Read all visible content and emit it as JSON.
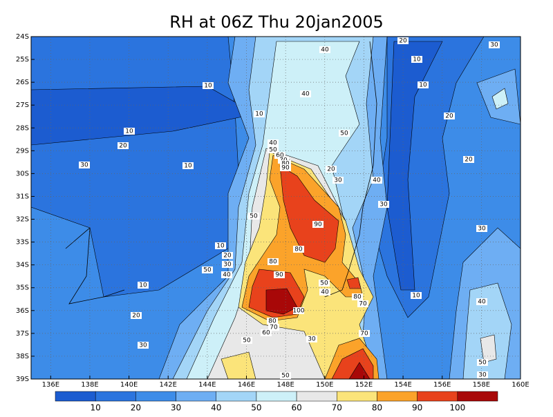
{
  "title": "RH at 06Z Thu 20jan2005",
  "lon_ticks": [
    {
      "value": 136,
      "label": "136E"
    },
    {
      "value": 138,
      "label": "138E"
    },
    {
      "value": 140,
      "label": "140E"
    },
    {
      "value": 142,
      "label": "142E"
    },
    {
      "value": 144,
      "label": "144E"
    },
    {
      "value": 146,
      "label": "146E"
    },
    {
      "value": 148,
      "label": "148E"
    },
    {
      "value": 150,
      "label": "150E"
    },
    {
      "value": 152,
      "label": "152E"
    },
    {
      "value": 154,
      "label": "154E"
    },
    {
      "value": 156,
      "label": "156E"
    },
    {
      "value": 158,
      "label": "158E"
    },
    {
      "value": 160,
      "label": "160E"
    }
  ],
  "lat_ticks": [
    {
      "value": -24,
      "label": "24S"
    },
    {
      "value": -25,
      "label": "25S"
    },
    {
      "value": -26,
      "label": "26S"
    },
    {
      "value": -27,
      "label": "27S"
    },
    {
      "value": -28,
      "label": "28S"
    },
    {
      "value": -29,
      "label": "29S"
    },
    {
      "value": -30,
      "label": "30S"
    },
    {
      "value": -31,
      "label": "31S"
    },
    {
      "value": -32,
      "label": "32S"
    },
    {
      "value": -33,
      "label": "33S"
    },
    {
      "value": -34,
      "label": "34S"
    },
    {
      "value": -35,
      "label": "35S"
    },
    {
      "value": -36,
      "label": "36S"
    },
    {
      "value": -37,
      "label": "37S"
    },
    {
      "value": -38,
      "label": "38S"
    },
    {
      "value": -39,
      "label": "39S"
    }
  ],
  "colorbar": {
    "levels": [
      10,
      20,
      30,
      40,
      50,
      60,
      70,
      80,
      90,
      100
    ],
    "colors": [
      "#1c5cd0",
      "#2b74de",
      "#3d8ce8",
      "#6eaef3",
      "#a3d5f7",
      "#cdf0f8",
      "#e8e8e8",
      "#fbe47a",
      "#fba32a",
      "#e8421c",
      "#a80808"
    ]
  },
  "contour_labels": [
    40,
    20,
    30,
    10,
    10,
    10,
    40,
    10,
    20,
    10,
    50,
    20,
    40,
    50,
    60,
    70,
    80,
    90,
    20,
    30,
    10,
    20,
    30,
    40,
    30,
    50,
    90,
    30,
    80,
    10,
    20,
    30,
    80,
    50,
    40,
    90,
    50,
    10,
    40,
    80,
    70,
    10,
    40,
    100,
    20,
    80,
    70,
    60,
    70,
    30,
    50,
    30,
    50,
    30,
    50
  ]
}
